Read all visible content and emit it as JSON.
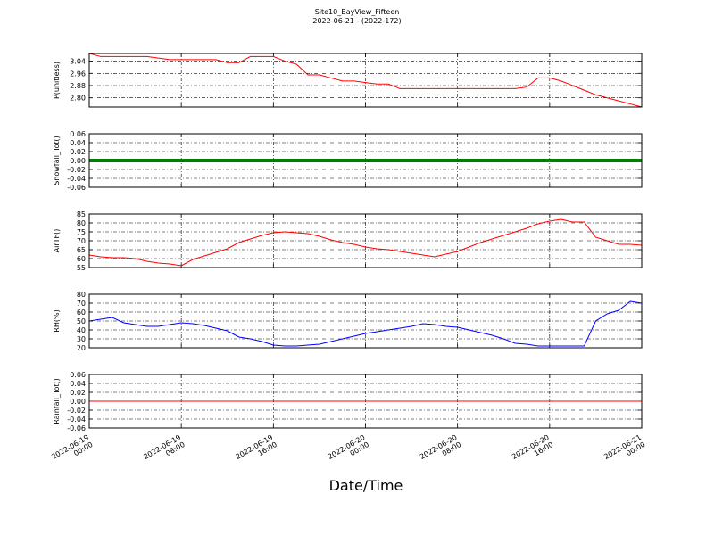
{
  "chart_data": {
    "type": "line",
    "title": "Site10_BayView_Fifteen",
    "subtitle": "2022-06-21 - (2022-172)",
    "xlabel": "Date/Time",
    "grid": true,
    "xlim": [
      "2022-06-19 00:00",
      "2022-06-21 00:00"
    ],
    "xticks": [
      {
        "value": "2022-06-19 00:00",
        "label": "2022-06-19\n00:00"
      },
      {
        "value": "2022-06-19 08:00",
        "label": "2022-06-19\n08:00"
      },
      {
        "value": "2022-06-19 16:00",
        "label": "2022-06-19\n16:00"
      },
      {
        "value": "2022-06-20 00:00",
        "label": "2022-06-20\n00:00"
      },
      {
        "value": "2022-06-20 08:00",
        "label": "2022-06-20\n08:00"
      },
      {
        "value": "2022-06-20 16:00",
        "label": "2022-06-20\n16:00"
      },
      {
        "value": "2022-06-21 00:00",
        "label": "2022-06-21\n00:00"
      }
    ],
    "x": [
      "2022-06-19 00:00",
      "2022-06-19 01:00",
      "2022-06-19 02:00",
      "2022-06-19 03:00",
      "2022-06-19 04:00",
      "2022-06-19 05:00",
      "2022-06-19 06:00",
      "2022-06-19 07:00",
      "2022-06-19 08:00",
      "2022-06-19 09:00",
      "2022-06-19 10:00",
      "2022-06-19 11:00",
      "2022-06-19 12:00",
      "2022-06-19 13:00",
      "2022-06-19 14:00",
      "2022-06-19 15:00",
      "2022-06-19 16:00",
      "2022-06-19 17:00",
      "2022-06-19 18:00",
      "2022-06-19 19:00",
      "2022-06-19 20:00",
      "2022-06-19 21:00",
      "2022-06-19 22:00",
      "2022-06-19 23:00",
      "2022-06-20 00:00",
      "2022-06-20 01:00",
      "2022-06-20 02:00",
      "2022-06-20 03:00",
      "2022-06-20 04:00",
      "2022-06-20 05:00",
      "2022-06-20 06:00",
      "2022-06-20 07:00",
      "2022-06-20 08:00",
      "2022-06-20 09:00",
      "2022-06-20 10:00",
      "2022-06-20 11:00",
      "2022-06-20 12:00",
      "2022-06-20 13:00",
      "2022-06-20 14:00",
      "2022-06-20 15:00",
      "2022-06-20 16:00",
      "2022-06-20 17:00",
      "2022-06-20 18:00",
      "2022-06-20 19:00",
      "2022-06-20 20:00",
      "2022-06-20 21:00",
      "2022-06-20 22:00",
      "2022-06-20 23:00",
      "2022-06-21 00:00"
    ],
    "panels": [
      {
        "ylabel": "P(unitless)",
        "ylim": [
          2.74,
          3.09
        ],
        "yticks": [
          {
            "value": 2.8,
            "label": "2.80"
          },
          2.88,
          2.96,
          3.04
        ],
        "series": [
          {
            "color": "#ff0000",
            "width": 1,
            "values": [
              3.09,
              3.07,
              3.07,
              3.07,
              3.07,
              3.07,
              3.06,
              3.05,
              3.05,
              3.05,
              3.05,
              3.05,
              3.03,
              3.03,
              3.07,
              3.07,
              3.07,
              3.04,
              3.02,
              2.95,
              2.95,
              2.93,
              2.91,
              2.91,
              2.9,
              2.89,
              2.89,
              2.86,
              2.86,
              2.86,
              2.86,
              2.86,
              2.86,
              2.86,
              2.86,
              2.86,
              2.86,
              2.86,
              2.87,
              2.93,
              2.93,
              2.91,
              2.88,
              2.85,
              2.82,
              2.8,
              2.78,
              2.76,
              2.74
            ]
          }
        ]
      },
      {
        "ylabel": "Snowfall_Tot()",
        "ylim": [
          -0.06,
          0.06
        ],
        "yticks": [
          -0.06,
          -0.04,
          -0.02,
          {
            "value": 0,
            "label": "0.00"
          },
          0.02,
          0.04,
          0.06
        ],
        "series": [
          {
            "color": "#008000",
            "width": 4,
            "values": [
              0,
              0,
              0,
              0,
              0,
              0,
              0,
              0,
              0,
              0,
              0,
              0,
              0,
              0,
              0,
              0,
              0,
              0,
              0,
              0,
              0,
              0,
              0,
              0,
              0,
              0,
              0,
              0,
              0,
              0,
              0,
              0,
              0,
              0,
              0,
              0,
              0,
              0,
              0,
              0,
              0,
              0,
              0,
              0,
              0,
              0,
              0,
              0,
              0
            ]
          }
        ]
      },
      {
        "ylabel": "AirTF()",
        "ylim": [
          55,
          85
        ],
        "yticks": [
          55,
          60,
          65,
          70,
          75,
          80,
          85
        ],
        "series": [
          {
            "color": "#ff0000",
            "width": 1,
            "values": [
              62,
              61,
              60.5,
              60.5,
              60,
              58.5,
              57.5,
              57,
              56,
              59.5,
              61.5,
              63.5,
              65.5,
              69,
              71,
              73,
              74.5,
              75,
              74.5,
              74,
              72.5,
              70.5,
              69,
              68,
              66.5,
              65.5,
              65,
              64,
              63,
              62,
              61,
              62.5,
              64,
              66.5,
              69,
              71,
              73,
              75,
              77,
              79.5,
              81,
              82,
              80.5,
              80.5,
              72,
              70,
              68,
              68,
              67.5
            ]
          }
        ]
      },
      {
        "ylabel": "RH(%)",
        "ylim": [
          20,
          80
        ],
        "yticks": [
          20,
          30,
          40,
          50,
          60,
          70,
          80
        ],
        "series": [
          {
            "color": "#0000ff",
            "width": 1,
            "values": [
              50,
              52,
              54,
              48,
              46,
              44,
              44,
              46,
              48,
              47,
              45,
              42,
              39,
              32,
              30,
              27,
              23,
              22,
              22,
              23,
              24,
              27,
              30,
              33,
              36,
              38,
              40,
              42,
              44,
              47,
              46,
              44,
              43,
              40,
              37,
              34,
              30,
              25,
              24,
              22,
              22,
              22,
              22,
              22,
              50,
              58,
              62,
              72,
              70
            ]
          }
        ]
      },
      {
        "ylabel": "Rainfall_Tot()",
        "ylim": [
          -0.06,
          0.06
        ],
        "yticks": [
          -0.06,
          -0.04,
          -0.02,
          {
            "value": 0,
            "label": "0.00"
          },
          0.02,
          0.04,
          0.06
        ],
        "series": [
          {
            "color": "#ff0000",
            "width": 1,
            "values": [
              0,
              0,
              0,
              0,
              0,
              0,
              0,
              0,
              0,
              0,
              0,
              0,
              0,
              0,
              0,
              0,
              0,
              0,
              0,
              0,
              0,
              0,
              0,
              0,
              0,
              0,
              0,
              0,
              0,
              0,
              0,
              0,
              0,
              0,
              0,
              0,
              0,
              0,
              0,
              0,
              0,
              0,
              0,
              0,
              0,
              0,
              0,
              0,
              0
            ]
          }
        ]
      }
    ]
  }
}
